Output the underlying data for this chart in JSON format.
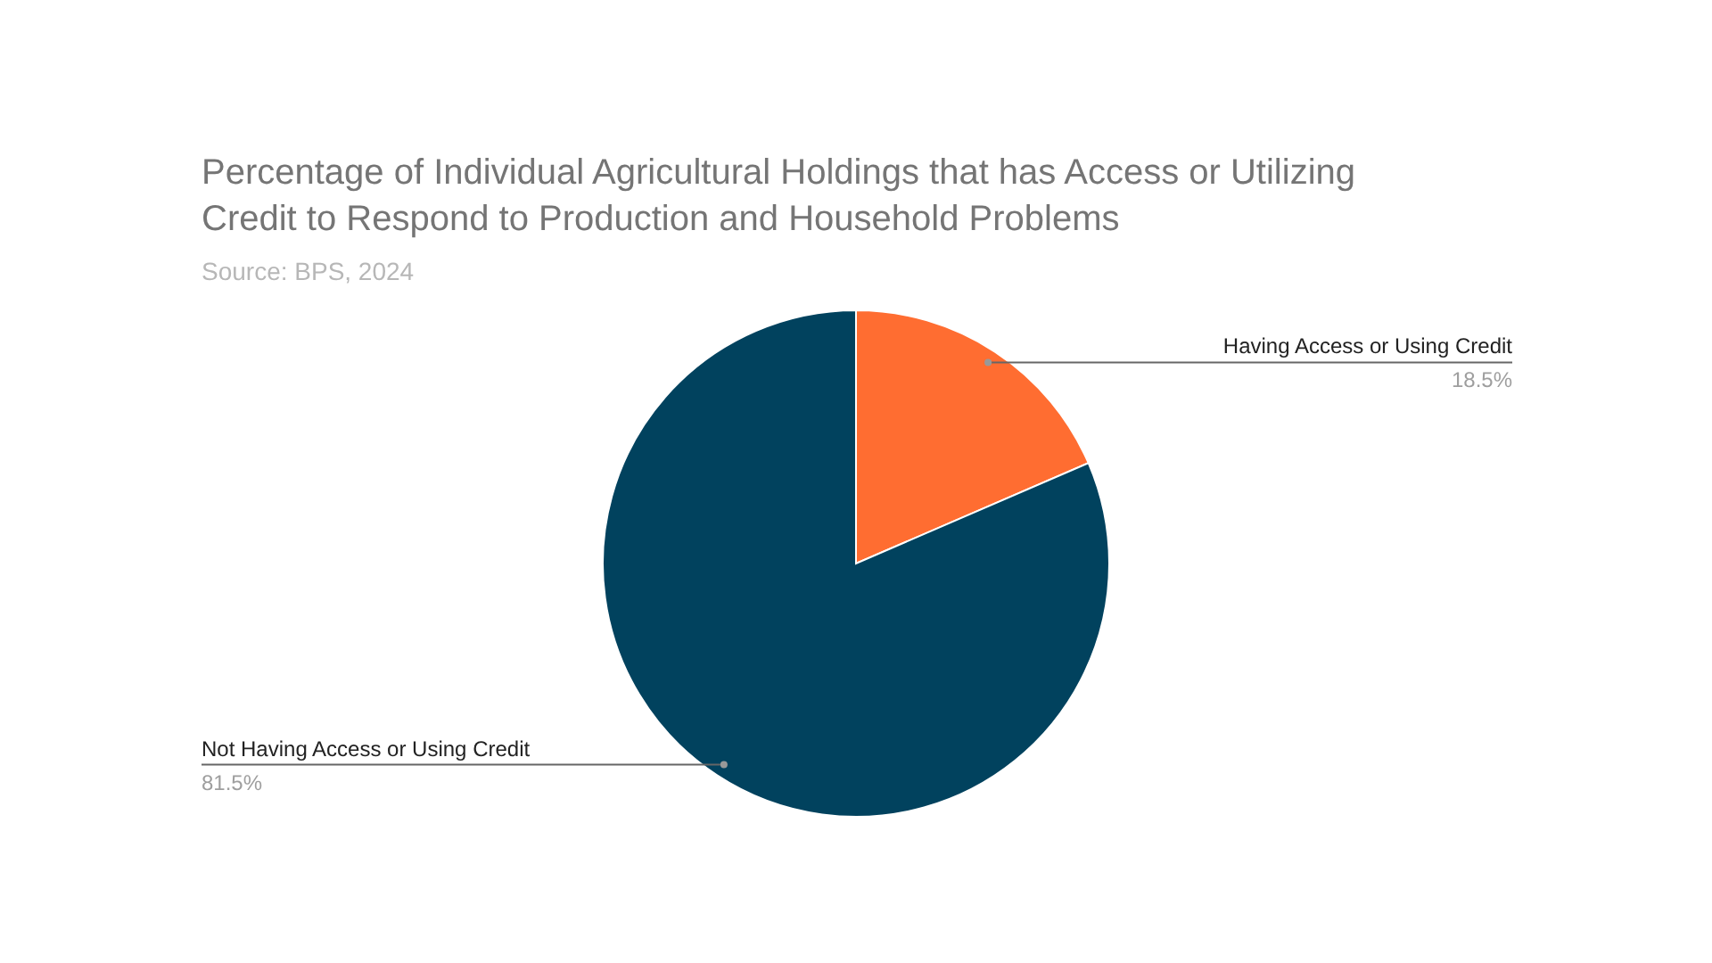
{
  "chart_data": {
    "type": "pie",
    "title": "Percentage of Individual Agricultural Holdings that has Access or Utilizing Credit to Respond to Production and Household Problems",
    "subtitle": "Source: BPS, 2024",
    "categories": [
      "Having Access or Using Credit",
      "Not Having Access or Using Credit"
    ],
    "values": [
      18.5,
      81.5
    ],
    "colors": [
      "#ff6d31",
      "#01425e"
    ],
    "value_labels": [
      "18.5%",
      "81.5%"
    ]
  }
}
